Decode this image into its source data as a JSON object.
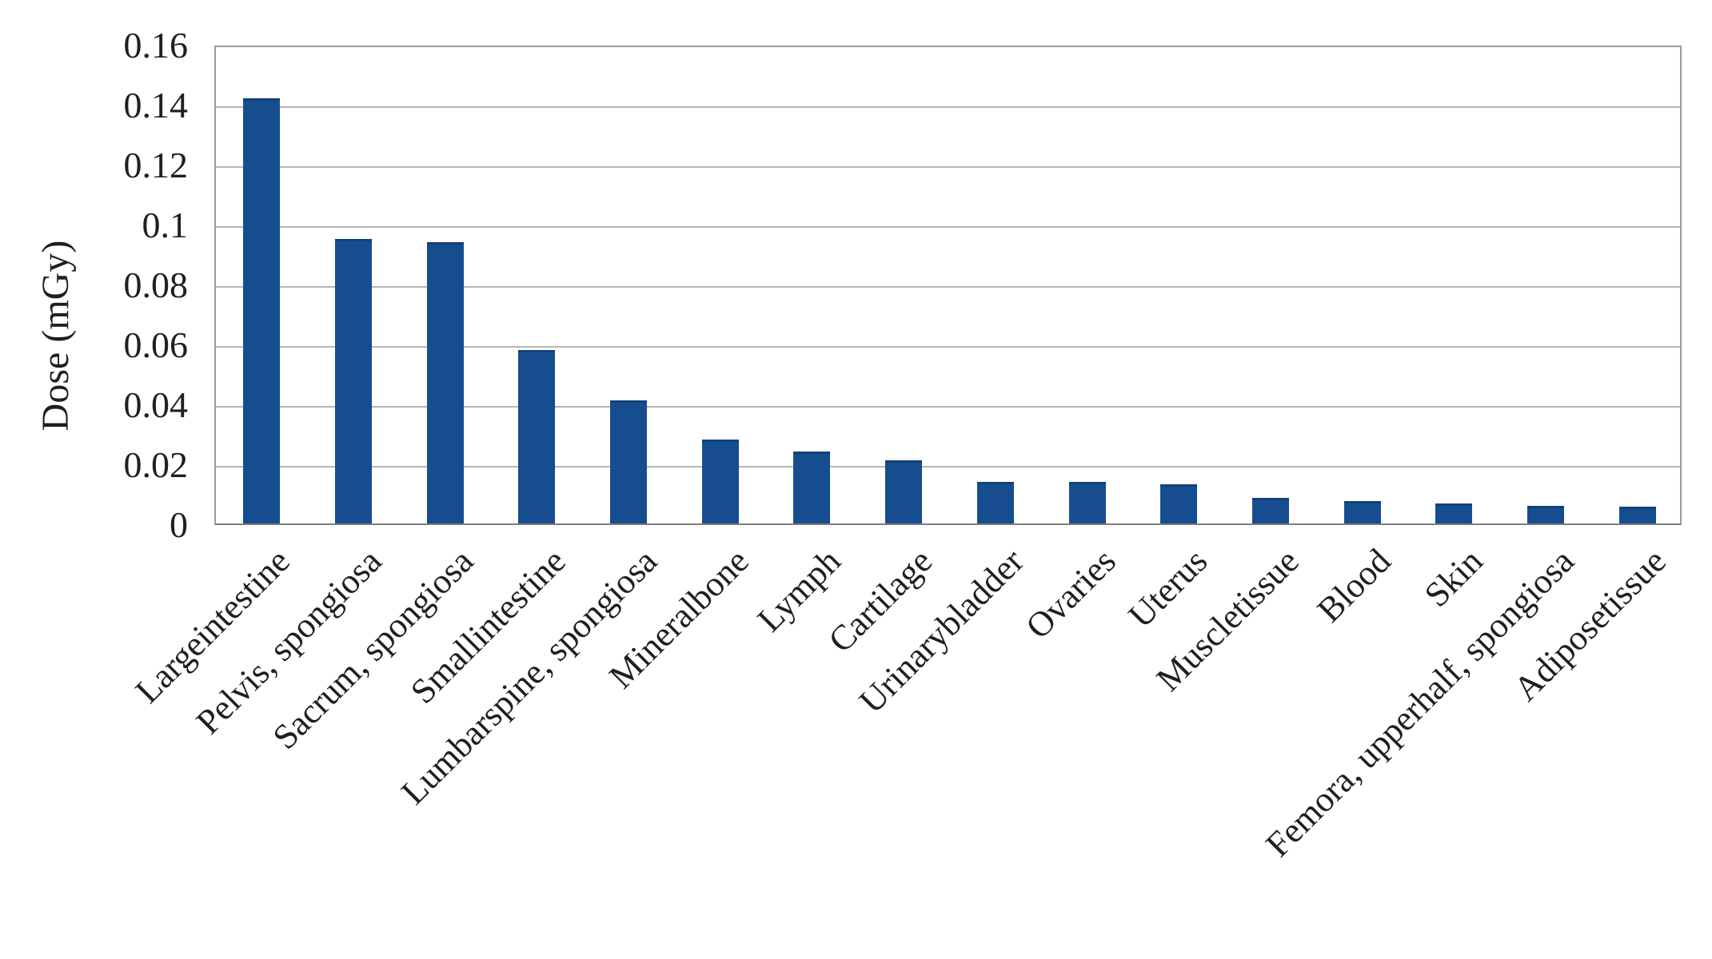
{
  "chart_data": {
    "type": "bar",
    "title": "",
    "xlabel": "",
    "ylabel": "Dose (mGy)",
    "categories": [
      "Largeintestine",
      "Pelvis, spongiosa",
      "Sacrum, spongiosa",
      "Smallintestine",
      "Lumbarspine, spongiosa",
      "Mineralbone",
      "Lymph",
      "Cartilage",
      "Urinarybladder",
      "Ovaries",
      "Uterus",
      "Muscletissue",
      "Blood",
      "Skin",
      "Femora, upperhalf, spongiosa",
      "Adiposetissue"
    ],
    "values": [
      0.142,
      0.095,
      0.094,
      0.058,
      0.041,
      0.028,
      0.024,
      0.021,
      0.014,
      0.0138,
      0.013,
      0.0085,
      0.0075,
      0.0066,
      0.006,
      0.0055
    ],
    "ylim": [
      0,
      0.16
    ],
    "ytick_values": [
      0,
      0.02,
      0.04,
      0.06,
      0.08,
      0.1,
      0.12,
      0.14,
      0.16
    ],
    "ytick_labels": [
      "0",
      "0.02",
      "0.04",
      "0.06",
      "0.08",
      "0.1",
      "0.12",
      "0.14",
      "0.16"
    ],
    "grid": true,
    "legend_position": "none",
    "x_label_rotation_deg": 45,
    "bar_color": "#164D8F",
    "gridline_color": "#b5b5b5",
    "axis_color": "#9a9a9a",
    "baseline_color": "#7d7d7d",
    "text_color": "#1f1f1f",
    "background_color": "#ffffff"
  }
}
